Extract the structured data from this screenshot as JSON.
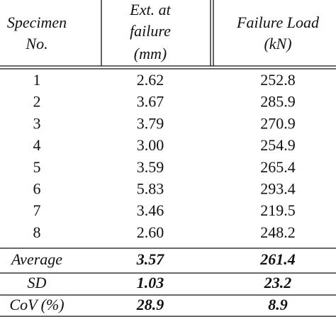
{
  "table": {
    "header": [
      [
        "Specimen",
        "No."
      ],
      [
        "Ext. at",
        "failure",
        "(mm)"
      ],
      [
        "Failure Load",
        "(kN)"
      ]
    ],
    "rows": [
      [
        "1",
        "2.62",
        "252.8"
      ],
      [
        "2",
        "3.67",
        "285.9"
      ],
      [
        "3",
        "3.79",
        "270.9"
      ],
      [
        "4",
        "3.00",
        "254.9"
      ],
      [
        "5",
        "3.59",
        "265.4"
      ],
      [
        "6",
        "5.83",
        "293.4"
      ],
      [
        "7",
        "3.46",
        "219.5"
      ],
      [
        "8",
        "2.60",
        "248.2"
      ]
    ],
    "summary": [
      [
        "Average",
        "3.57",
        "261.4"
      ],
      [
        "SD",
        "1.03",
        "23.2"
      ],
      [
        "CoV (%)",
        "28.9",
        "8.9"
      ]
    ]
  }
}
